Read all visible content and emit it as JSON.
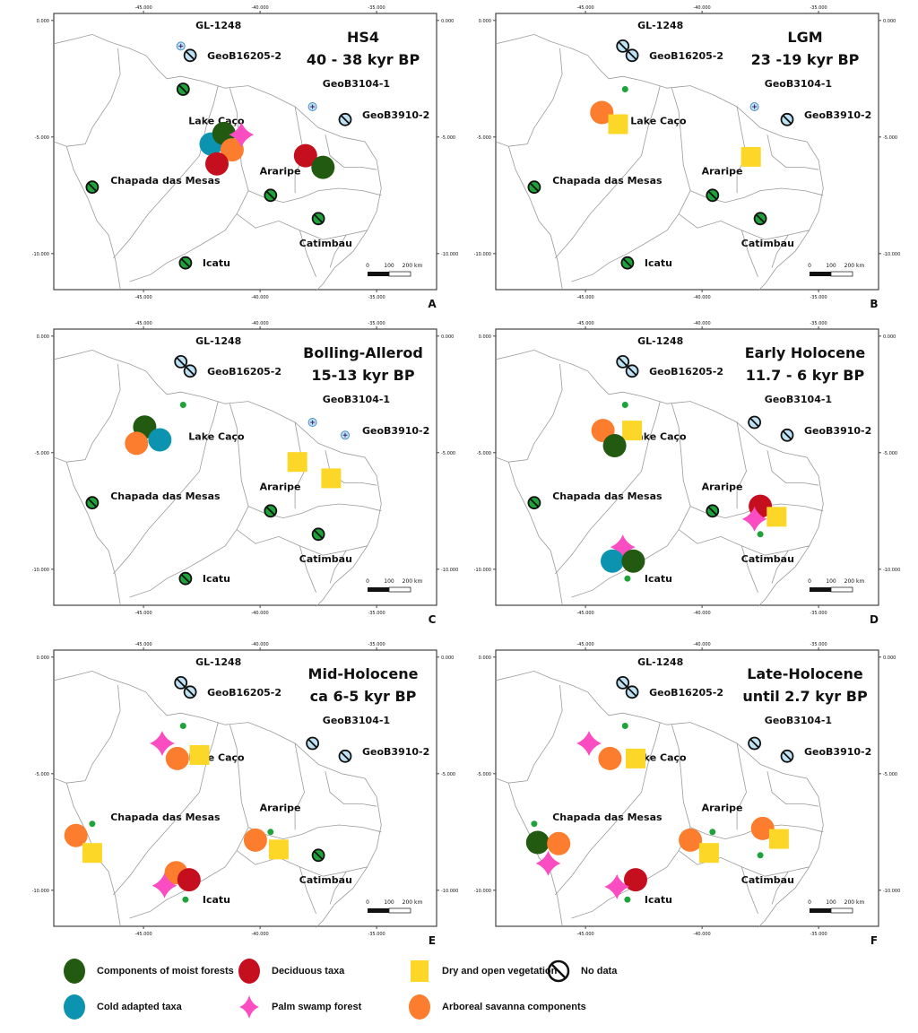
{
  "axes": {
    "lon_ticks": [
      -45,
      -40,
      -35
    ],
    "lat_ticks": [
      0,
      -5,
      -10
    ],
    "lon_tick_labels": [
      "-45.000",
      "-40.000",
      "-35.000"
    ],
    "lat_tick_labels": [
      "0.000",
      "-5.000",
      "-10.000"
    ],
    "lon_range": [
      -48.85,
      -32.4
    ],
    "lat_range": [
      -11.55,
      0.3
    ]
  },
  "scale_bar": {
    "labels": [
      "0",
      "100",
      "200 km"
    ]
  },
  "colors": {
    "moist": "#235a12",
    "deciduous": "#c50f1f",
    "dry": "#fdd728",
    "cold": "#0c93b0",
    "palm": "#fb4dc2",
    "savanna": "#fb7d2d",
    "site_green": "#1ea33a",
    "marine_blue": "#bfe3f5"
  },
  "sites": [
    {
      "name": "GL-1248",
      "lon": -43.4,
      "lat": -1.1,
      "marine": true,
      "lx": 0.4,
      "ly": 0.9
    },
    {
      "name": "GeoB16205-2",
      "lon": -43.0,
      "lat": -1.5,
      "marine": true,
      "lx": 0.5,
      "ly": 0.0
    },
    {
      "name": "Lake Caço",
      "lon": -43.3,
      "lat": -2.95,
      "marine": false,
      "lx": 0.0,
      "ly": -1.35
    },
    {
      "name": "GeoB3104-1",
      "lon": -37.75,
      "lat": -3.7,
      "marine": true,
      "lx": 0.2,
      "ly": 1.0
    },
    {
      "name": "GeoB3910-2",
      "lon": -36.35,
      "lat": -4.25,
      "marine": true,
      "lx": 0.5,
      "ly": 0.2
    },
    {
      "name": "Chapada das Mesas",
      "lon": -47.2,
      "lat": -7.15,
      "marine": false,
      "lx": 0.55,
      "ly": 0.3
    },
    {
      "name": "Araripe",
      "lon": -39.55,
      "lat": -7.5,
      "marine": false,
      "lx": -0.7,
      "ly": 1.05
    },
    {
      "name": "Catimbau",
      "lon": -37.5,
      "lat": -8.5,
      "marine": false,
      "lx": -1.05,
      "ly": -1.05
    },
    {
      "name": "Icatu",
      "lon": -43.2,
      "lat": -10.4,
      "marine": false,
      "lx": 0.5,
      "ly": 0.0
    }
  ],
  "legend": [
    {
      "key": "moist",
      "shape": "circle",
      "label": "Components of moist forests"
    },
    {
      "key": "deciduous",
      "shape": "circle",
      "label": "Deciduous taxa"
    },
    {
      "key": "dry",
      "shape": "square",
      "label": "Dry and open vegetation"
    },
    {
      "key": "nodata",
      "shape": "nodata",
      "label": "No data"
    },
    {
      "key": "cold",
      "shape": "circle",
      "label": "Cold adapted taxa"
    },
    {
      "key": "palm",
      "shape": "star",
      "label": "Palm swamp forest"
    },
    {
      "key": "savanna",
      "shape": "circle",
      "label": "Arboreal savanna components"
    }
  ],
  "panels": [
    {
      "letter": "A",
      "title1": "HS4",
      "title2": "40 - 38 kyr BP",
      "nodata_sites": [
        "GL-1248",
        "GeoB16205-2",
        "Lake Caço",
        "GeoB3104-1",
        "GeoB3910-2",
        "Chapada das Mesas",
        "Araripe",
        "Catimbau",
        "Icatu"
      ],
      "nodata_style": {
        "GL-1248": "marine-plus",
        "GeoB3104-1": "marine-plus"
      },
      "markers": [
        {
          "type": "cold",
          "lon": -42.1,
          "lat": -5.3
        },
        {
          "type": "moist",
          "lon": -41.55,
          "lat": -4.85
        },
        {
          "type": "savanna",
          "lon": -41.2,
          "lat": -5.55
        },
        {
          "type": "deciduous",
          "lon": -41.85,
          "lat": -6.15
        },
        {
          "type": "palm",
          "lon": -40.8,
          "lat": -4.9
        },
        {
          "type": "deciduous",
          "lon": -38.05,
          "lat": -5.8
        },
        {
          "type": "moist",
          "lon": -37.3,
          "lat": -6.3
        }
      ]
    },
    {
      "letter": "B",
      "title1": "LGM",
      "title2": "23 -19 kyr BP",
      "nodata_sites": [
        "GL-1248",
        "GeoB16205-2",
        "GeoB3104-1",
        "GeoB3910-2",
        "Chapada das Mesas",
        "Araripe",
        "Catimbau",
        "Icatu"
      ],
      "nodata_style": {
        "GeoB3104-1": "marine-plus"
      },
      "dot_sites": [
        "Lake Caço"
      ],
      "markers": [
        {
          "type": "savanna",
          "lon": -44.3,
          "lat": -3.95
        },
        {
          "type": "dry",
          "lon": -43.6,
          "lat": -4.45
        },
        {
          "type": "dry",
          "lon": -37.9,
          "lat": -5.85
        }
      ]
    },
    {
      "letter": "C",
      "title1": "Bolling-Allerod",
      "title2": "15-13 kyr BP",
      "nodata_sites": [
        "GL-1248",
        "GeoB16205-2",
        "GeoB3104-1",
        "GeoB3910-2",
        "Chapada das Mesas",
        "Araripe",
        "Catimbau",
        "Icatu"
      ],
      "nodata_style": {
        "GeoB3104-1": "marine-plus",
        "GeoB3910-2": "marine-plus"
      },
      "dot_sites": [
        "Lake Caço"
      ],
      "markers": [
        {
          "type": "moist",
          "lon": -44.95,
          "lat": -3.9
        },
        {
          "type": "cold",
          "lon": -44.3,
          "lat": -4.45
        },
        {
          "type": "savanna",
          "lon": -45.3,
          "lat": -4.6
        },
        {
          "type": "dry",
          "lon": -38.4,
          "lat": -5.4
        },
        {
          "type": "dry",
          "lon": -36.95,
          "lat": -6.1
        }
      ]
    },
    {
      "letter": "D",
      "title1": "Early Holocene",
      "title2": "11.7 - 6 kyr BP",
      "nodata_sites": [
        "GL-1248",
        "GeoB16205-2",
        "GeoB3104-1",
        "GeoB3910-2",
        "Chapada das Mesas",
        "Araripe"
      ],
      "dot_sites": [
        "Lake Caço",
        "Catimbau",
        "Icatu"
      ],
      "markers": [
        {
          "type": "savanna",
          "lon": -44.25,
          "lat": -4.05
        },
        {
          "type": "dry",
          "lon": -43.0,
          "lat": -4.05
        },
        {
          "type": "moist",
          "lon": -43.75,
          "lat": -4.7
        },
        {
          "type": "deciduous",
          "lon": -37.5,
          "lat": -7.3
        },
        {
          "type": "palm",
          "lon": -37.75,
          "lat": -7.85
        },
        {
          "type": "dry",
          "lon": -36.8,
          "lat": -7.75
        },
        {
          "type": "palm",
          "lon": -43.4,
          "lat": -9.05
        },
        {
          "type": "cold",
          "lon": -43.85,
          "lat": -9.65
        },
        {
          "type": "moist",
          "lon": -42.95,
          "lat": -9.65
        }
      ]
    },
    {
      "letter": "E",
      "title1": "Mid-Holocene",
      "title2": "ca 6-5  kyr BP",
      "nodata_sites": [
        "GL-1248",
        "GeoB16205-2",
        "GeoB3104-1",
        "GeoB3910-2",
        "Catimbau"
      ],
      "dot_sites": [
        "Lake Caço",
        "Chapada das Mesas",
        "Araripe",
        "Icatu"
      ],
      "markers": [
        {
          "type": "palm",
          "lon": -44.2,
          "lat": -3.7
        },
        {
          "type": "savanna",
          "lon": -43.55,
          "lat": -4.35
        },
        {
          "type": "dry",
          "lon": -42.6,
          "lat": -4.2
        },
        {
          "type": "savanna",
          "lon": -47.9,
          "lat": -7.65
        },
        {
          "type": "dry",
          "lon": -47.2,
          "lat": -8.4
        },
        {
          "type": "savanna",
          "lon": -40.2,
          "lat": -7.85
        },
        {
          "type": "dry",
          "lon": -39.2,
          "lat": -8.25
        },
        {
          "type": "savanna",
          "lon": -43.6,
          "lat": -9.25
        },
        {
          "type": "deciduous",
          "lon": -43.05,
          "lat": -9.55
        },
        {
          "type": "palm",
          "lon": -44.1,
          "lat": -9.8
        }
      ]
    },
    {
      "letter": "F",
      "title1": "Late-Holocene",
      "title2": "until 2.7 kyr BP",
      "nodata_sites": [
        "GL-1248",
        "GeoB16205-2",
        "GeoB3104-1",
        "GeoB3910-2"
      ],
      "dot_sites": [
        "Lake Caço",
        "Chapada das Mesas",
        "Araripe",
        "Catimbau",
        "Icatu"
      ],
      "markers": [
        {
          "type": "palm",
          "lon": -44.85,
          "lat": -3.7
        },
        {
          "type": "savanna",
          "lon": -43.95,
          "lat": -4.35
        },
        {
          "type": "dry",
          "lon": -42.85,
          "lat": -4.35
        },
        {
          "type": "moist",
          "lon": -47.05,
          "lat": -7.95
        },
        {
          "type": "savanna",
          "lon": -46.15,
          "lat": -8.0
        },
        {
          "type": "palm",
          "lon": -46.6,
          "lat": -8.85
        },
        {
          "type": "savanna",
          "lon": -40.5,
          "lat": -7.85
        },
        {
          "type": "dry",
          "lon": -39.7,
          "lat": -8.4
        },
        {
          "type": "savanna",
          "lon": -37.4,
          "lat": -7.35
        },
        {
          "type": "dry",
          "lon": -36.7,
          "lat": -7.8
        },
        {
          "type": "deciduous",
          "lon": -42.85,
          "lat": -9.55
        },
        {
          "type": "palm",
          "lon": -43.65,
          "lat": -9.85
        }
      ]
    }
  ]
}
